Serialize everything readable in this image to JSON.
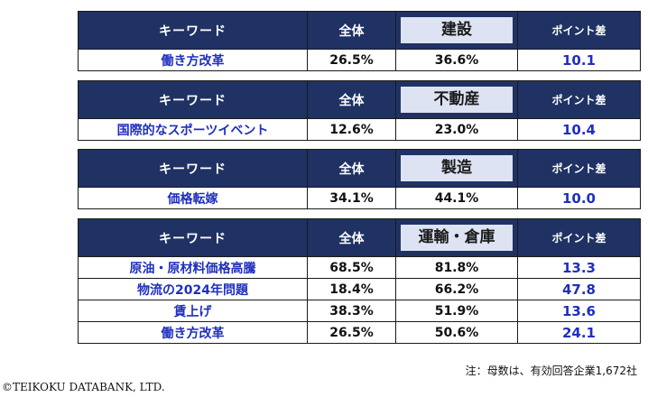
{
  "headers": {
    "keyword": "キーワード",
    "overall": "全体",
    "diff": "ポイント差"
  },
  "tables": [
    {
      "industry": "建設",
      "rows": [
        {
          "keyword": "働き方改革",
          "overall": "26.5%",
          "industry_value": "36.6%",
          "diff": "10.1"
        }
      ]
    },
    {
      "industry": "不動産",
      "rows": [
        {
          "keyword": "国際的なスポーツイベント",
          "overall": "12.6%",
          "industry_value": "23.0%",
          "diff": "10.4"
        }
      ]
    },
    {
      "industry": "製造",
      "rows": [
        {
          "keyword": "価格転嫁",
          "overall": "34.1%",
          "industry_value": "44.1%",
          "diff": "10.0"
        }
      ]
    },
    {
      "industry": "運輸・倉庫",
      "rows": [
        {
          "keyword": "原油・原材料価格高騰",
          "overall": "68.5%",
          "industry_value": "81.8%",
          "diff": "13.3"
        },
        {
          "keyword": "物流の2024年問題",
          "overall": "18.4%",
          "industry_value": "66.2%",
          "diff": "47.8"
        },
        {
          "keyword": "賃上げ",
          "overall": "38.3%",
          "industry_value": "51.9%",
          "diff": "13.6"
        },
        {
          "keyword": "働き方改革",
          "overall": "26.5%",
          "industry_value": "50.6%",
          "diff": "24.1"
        }
      ]
    }
  ],
  "note": "注：母数は、有効回答企業1,672社",
  "copyright": "©TEIKOKU DATABANK, LTD."
}
